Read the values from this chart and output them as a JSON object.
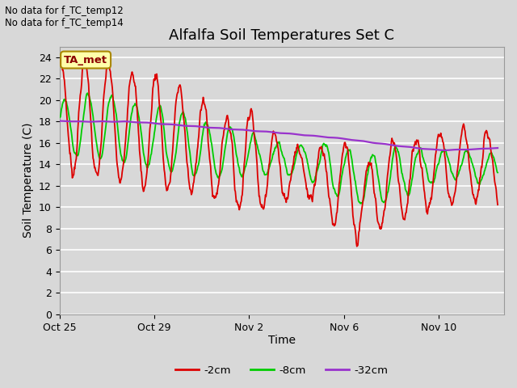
{
  "title": "Alfalfa Soil Temperatures Set C",
  "xlabel": "Time",
  "ylabel": "Soil Temperature (C)",
  "ylim": [
    0,
    25
  ],
  "yticks": [
    0,
    2,
    4,
    6,
    8,
    10,
    12,
    14,
    16,
    18,
    20,
    22,
    24
  ],
  "annotation_lines": [
    "No data for f_TC_temp12",
    "No data for f_TC_temp14"
  ],
  "legend_label_box": "TA_met",
  "legend_entries": [
    "-2cm",
    "-8cm",
    "-32cm"
  ],
  "legend_colors": [
    "#dd0000",
    "#00cc00",
    "#9933cc"
  ],
  "bg_color": "#d8d8d8",
  "grid_color": "#ffffff",
  "title_fontsize": 13,
  "axis_fontsize": 10,
  "tick_fontsize": 9,
  "line_width": 1.3,
  "x_tick_labels": [
    "Oct 25",
    "Oct 29",
    "Nov 2",
    "Nov 6",
    "Nov 10"
  ],
  "total_days": 18.5
}
